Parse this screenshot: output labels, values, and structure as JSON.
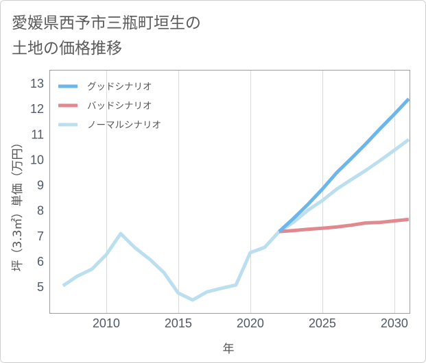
{
  "colors": {
    "title_text": "#5a5a5a",
    "tick_text": "#4f5968",
    "axis": "#9c9c9c",
    "grid": "#dadada",
    "card_border": "#cfcfcf"
  },
  "chart_data": {
    "type": "line",
    "title_lines": [
      "愛媛県西予市三瓶町垣生の",
      "土地の価格推移"
    ],
    "xlabel": "年",
    "ylabel": "坪（3.3㎡）単価（万円）",
    "xlim": [
      2006.05,
      2031.1
    ],
    "ylim": [
      3.95,
      13.54
    ],
    "x_ticks": [
      2010,
      2015,
      2020,
      2025,
      2030
    ],
    "y_ticks": [
      5,
      6,
      7,
      8,
      9,
      10,
      11,
      12,
      13
    ],
    "grid": {
      "x": true,
      "y": false
    },
    "legend": {
      "position": "top-left"
    },
    "x": [
      2007,
      2008,
      2009,
      2010,
      2011,
      2012,
      2013,
      2014,
      2015,
      2016,
      2017,
      2018,
      2019,
      2020,
      2021,
      2022,
      2023,
      2024,
      2025,
      2026,
      2027,
      2028,
      2029,
      2030,
      2031
    ],
    "series": [
      {
        "name": "グッドシナリオ",
        "color": "#6bb6ea",
        "values": [
          null,
          null,
          null,
          null,
          null,
          null,
          null,
          null,
          null,
          null,
          null,
          null,
          null,
          null,
          null,
          7.18,
          7.7,
          8.25,
          8.85,
          9.5,
          10.05,
          10.62,
          11.22,
          11.8,
          12.4
        ]
      },
      {
        "name": "バッドシナリオ",
        "color": "#e0898f",
        "values": [
          null,
          null,
          null,
          null,
          null,
          null,
          null,
          null,
          null,
          null,
          null,
          null,
          null,
          null,
          null,
          7.18,
          7.22,
          7.27,
          7.31,
          7.36,
          7.43,
          7.52,
          7.54,
          7.6,
          7.66
        ]
      },
      {
        "name": "ノーマルシナリオ",
        "color": "#bcdff0",
        "values": [
          5.05,
          5.43,
          5.7,
          6.27,
          7.1,
          6.54,
          6.1,
          5.57,
          4.76,
          4.49,
          4.81,
          4.95,
          5.08,
          6.35,
          6.56,
          7.18,
          7.55,
          8.02,
          8.4,
          8.85,
          9.22,
          9.58,
          9.97,
          10.38,
          10.8
        ]
      }
    ]
  }
}
